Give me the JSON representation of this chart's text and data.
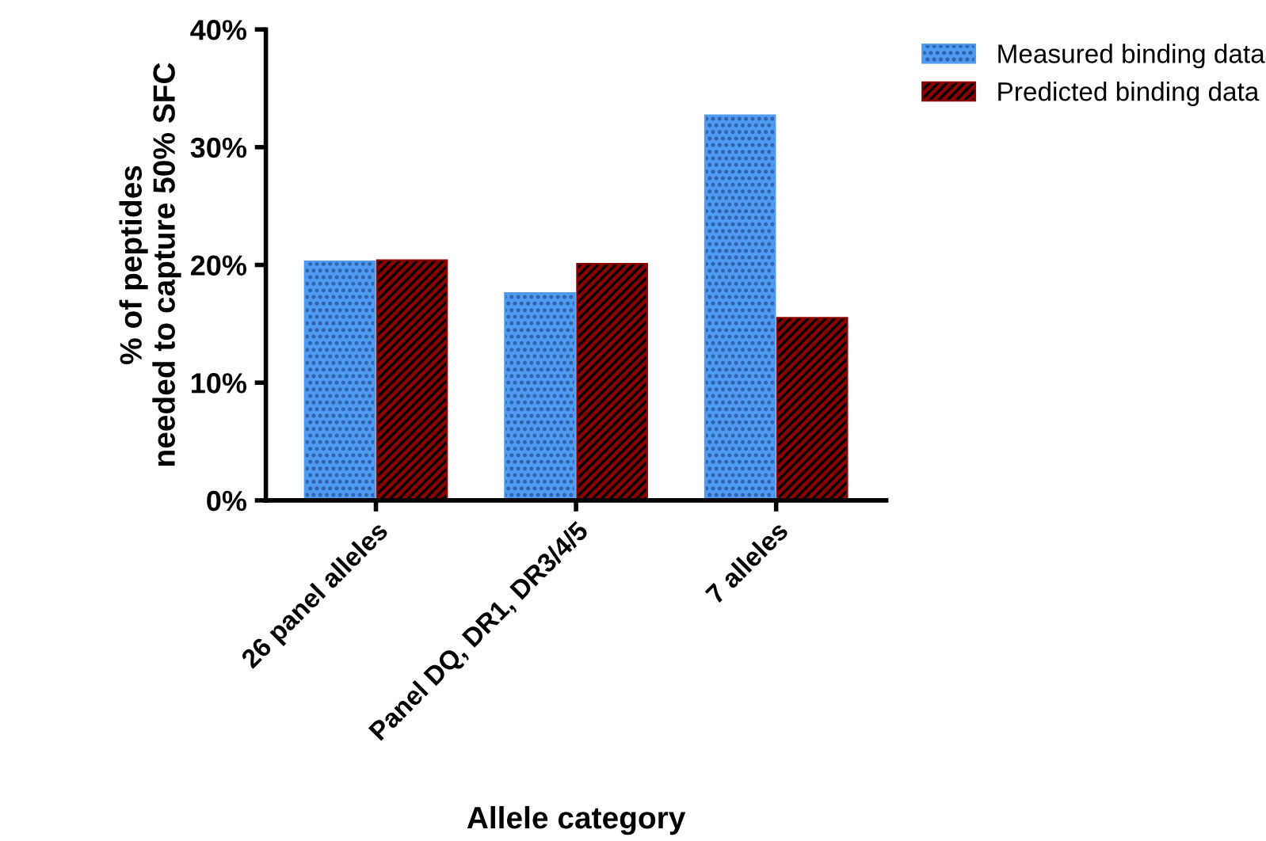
{
  "chart_data": {
    "type": "bar",
    "xlabel": "Allele category",
    "ylabel": "% of peptides\nneeded to capture 50% SFC",
    "categories": [
      "26 panel alleles",
      "Panel DQ, DR1, DR3/4/5",
      "7 alleles"
    ],
    "series": [
      {
        "name": "Measured binding data",
        "color": "#4f9bf2",
        "values": [
          20.3,
          17.6,
          32.7
        ]
      },
      {
        "name": "Predicted binding data",
        "color": "#8b0000",
        "values": [
          20.4,
          20.1,
          15.5
        ]
      }
    ],
    "ylim": [
      0,
      40
    ],
    "yticks": [
      {
        "value": 0,
        "label": "0%"
      },
      {
        "value": 10,
        "label": "10%"
      },
      {
        "value": 20,
        "label": "20%"
      },
      {
        "value": 30,
        "label": "30%"
      },
      {
        "value": 40,
        "label": "40%"
      }
    ],
    "grid": false,
    "legend": "top right"
  }
}
